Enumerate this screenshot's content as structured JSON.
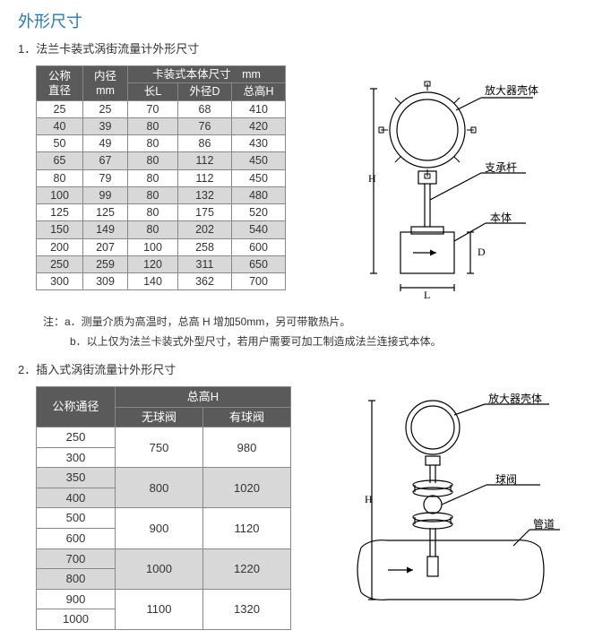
{
  "title": "外形尺寸",
  "section1": {
    "heading": "1．法兰卡装式涡街流量计外形尺寸",
    "headers": {
      "nom": "公称\n直径",
      "id": "内径\nmm",
      "bodyGroup": "卡装式本体尺寸　mm",
      "len": "长L",
      "od": "外径D",
      "th": "总高H"
    },
    "rows": [
      {
        "nom": "25",
        "id": "25",
        "l": "70",
        "d": "68",
        "h": "410"
      },
      {
        "nom": "40",
        "id": "39",
        "l": "80",
        "d": "76",
        "h": "420"
      },
      {
        "nom": "50",
        "id": "49",
        "l": "80",
        "d": "86",
        "h": "430"
      },
      {
        "nom": "65",
        "id": "67",
        "l": "80",
        "d": "112",
        "h": "450"
      },
      {
        "nom": "80",
        "id": "79",
        "l": "80",
        "d": "112",
        "h": "450"
      },
      {
        "nom": "100",
        "id": "99",
        "l": "80",
        "d": "132",
        "h": "480"
      },
      {
        "nom": "125",
        "id": "125",
        "l": "80",
        "d": "175",
        "h": "520"
      },
      {
        "nom": "150",
        "id": "149",
        "l": "80",
        "d": "202",
        "h": "540"
      },
      {
        "nom": "200",
        "id": "207",
        "l": "100",
        "d": "258",
        "h": "600"
      },
      {
        "nom": "250",
        "id": "259",
        "l": "120",
        "d": "311",
        "h": "650"
      },
      {
        "nom": "300",
        "id": "309",
        "l": "140",
        "d": "362",
        "h": "700"
      }
    ],
    "noteA": "注：a．测量介质为高温时，总高 H 增加50mm，另可带散热片。",
    "noteB": "b．以上仅为法兰卡装式外型尺寸，若用户需要可加工制造成法兰连接式本体。",
    "diagram": {
      "labels": {
        "amp": "放大器壳体",
        "strut": "支承杆",
        "body": "本体",
        "H": "H",
        "L": "L",
        "D": "D"
      }
    }
  },
  "section2": {
    "heading": "2．插入式涡街流量计外形尺寸",
    "headers": {
      "nom": "公称通径",
      "thGroup": "总高H",
      "noValve": "无球阀",
      "withValve": "有球阀"
    },
    "rows": [
      {
        "nom": "250",
        "nv": "750",
        "wv": "980",
        "span": true
      },
      {
        "nom": "300"
      },
      {
        "nom": "350",
        "nv": "800",
        "wv": "1020",
        "span": true
      },
      {
        "nom": "400"
      },
      {
        "nom": "500",
        "nv": "900",
        "wv": "1120",
        "span": true
      },
      {
        "nom": "600"
      },
      {
        "nom": "700",
        "nv": "1000",
        "wv": "1220",
        "span": true
      },
      {
        "nom": "800"
      },
      {
        "nom": "900",
        "nv": "1100",
        "wv": "1320",
        "span": true
      },
      {
        "nom": "1000"
      }
    ],
    "diagram": {
      "labels": {
        "amp": "放大器壳体",
        "valve": "球阀",
        "pipe": "管道",
        "H": "H"
      }
    }
  }
}
